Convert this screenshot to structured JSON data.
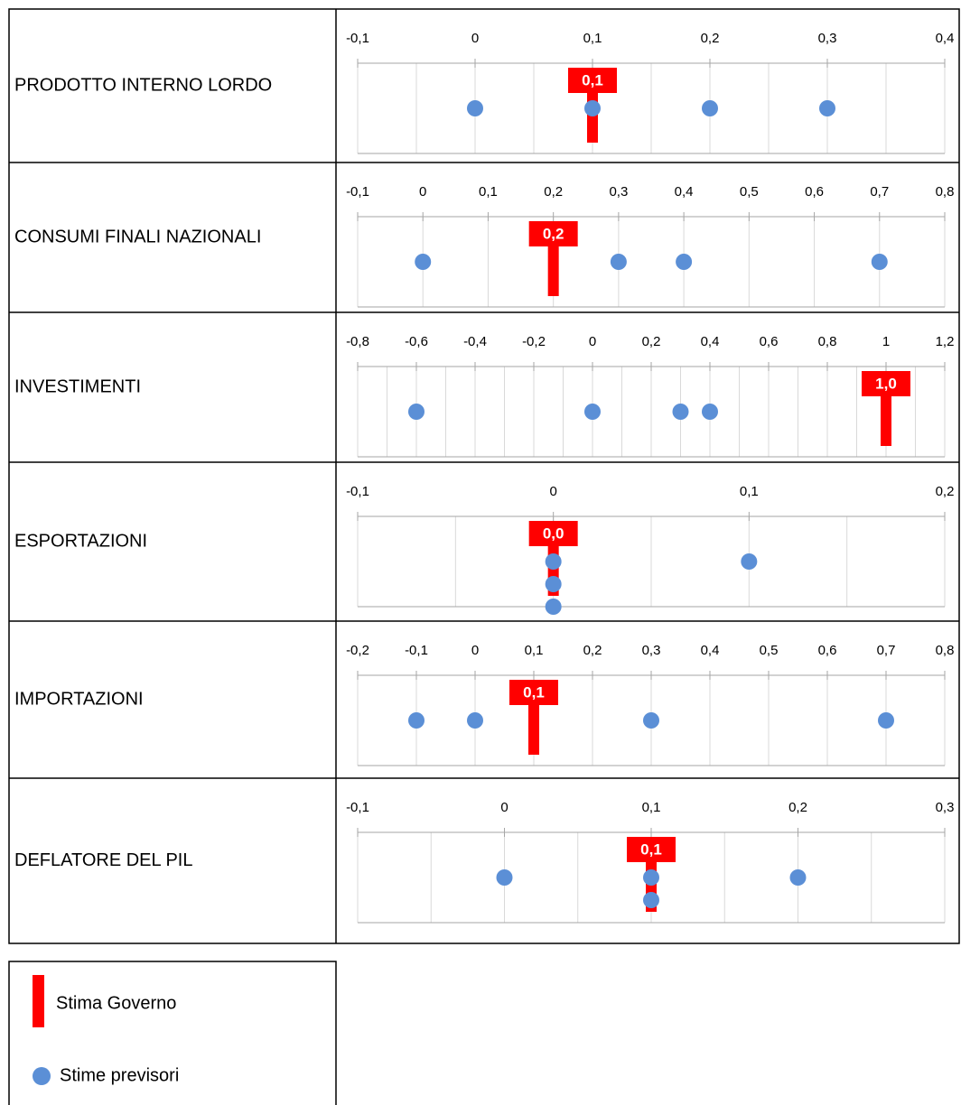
{
  "legend": [
    {
      "name": "Stima Governo",
      "color": "#ff0000"
    },
    {
      "name": "Stime previsori",
      "color": "#5b8fd6"
    }
  ],
  "chart_data": [
    {
      "type": "dot",
      "title": "PRODOTTO INTERNO LORDO",
      "xlim": [
        -0.1,
        0.4
      ],
      "xticks": [
        {
          "value": -0.1,
          "label": "-0,1"
        },
        0,
        {
          "value": 0.1,
          "label": "0,1"
        },
        {
          "value": 0.2,
          "label": "0,2"
        },
        {
          "value": 0.3,
          "label": "0,3"
        },
        {
          "value": 0.4,
          "label": "0,4"
        }
      ],
      "minor_grid": true,
      "series": [
        {
          "values": [
            0.1
          ],
          "value_labels": [
            "0,1"
          ]
        },
        {
          "values": [
            0,
            0.1,
            0.2,
            0.3
          ]
        }
      ]
    },
    {
      "type": "dot",
      "title": "CONSUMI FINALI NAZIONALI",
      "xlim": [
        -0.1,
        0.8
      ],
      "xticks": [
        {
          "value": -0.1,
          "label": "-0,1"
        },
        0,
        {
          "value": 0.1,
          "label": "0,1"
        },
        {
          "value": 0.2,
          "label": "0,2"
        },
        {
          "value": 0.3,
          "label": "0,3"
        },
        {
          "value": 0.4,
          "label": "0,4"
        },
        {
          "value": 0.5,
          "label": "0,5"
        },
        {
          "value": 0.6,
          "label": "0,6"
        },
        {
          "value": 0.7,
          "label": "0,7"
        },
        {
          "value": 0.8,
          "label": "0,8"
        }
      ],
      "minor_grid": false,
      "series": [
        {
          "values": [
            0.2
          ],
          "value_labels": [
            "0,2"
          ]
        },
        {
          "values": [
            0,
            0.3,
            0.4,
            0.7
          ]
        }
      ]
    },
    {
      "type": "dot",
      "title": "INVESTIMENTI",
      "xlim": [
        -0.8,
        1.2
      ],
      "xticks": [
        {
          "value": -0.8,
          "label": "-0,8"
        },
        {
          "value": -0.6,
          "label": "-0,6"
        },
        {
          "value": -0.4,
          "label": "-0,4"
        },
        {
          "value": -0.2,
          "label": "-0,2"
        },
        0,
        {
          "value": 0.2,
          "label": "0,2"
        },
        {
          "value": 0.4,
          "label": "0,4"
        },
        {
          "value": 0.6,
          "label": "0,6"
        },
        {
          "value": 0.8,
          "label": "0,8"
        },
        1,
        {
          "value": 1.2,
          "label": "1,2"
        }
      ],
      "minor_grid": true,
      "series": [
        {
          "values": [
            1.0
          ],
          "value_labels": [
            "1,0"
          ]
        },
        {
          "values": [
            -0.6,
            0,
            0.3,
            0.4
          ]
        }
      ]
    },
    {
      "type": "dot",
      "title": "ESPORTAZIONI",
      "xlim": [
        -0.1,
        0.2
      ],
      "xticks": [
        {
          "value": -0.1,
          "label": "-0,1"
        },
        0,
        {
          "value": 0.1,
          "label": "0,1"
        },
        {
          "value": 0.2,
          "label": "0,2"
        }
      ],
      "minor_grid": true,
      "series": [
        {
          "values": [
            0
          ],
          "value_labels": [
            "0,0"
          ]
        },
        {
          "values": [
            0,
            0.1,
            0,
            0
          ]
        }
      ]
    },
    {
      "type": "dot",
      "title": "IMPORTAZIONI",
      "xlim": [
        -0.2,
        0.8
      ],
      "xticks": [
        {
          "value": -0.2,
          "label": "-0,2"
        },
        {
          "value": -0.1,
          "label": "-0,1"
        },
        0,
        {
          "value": 0.1,
          "label": "0,1"
        },
        {
          "value": 0.2,
          "label": "0,2"
        },
        {
          "value": 0.3,
          "label": "0,3"
        },
        {
          "value": 0.4,
          "label": "0,4"
        },
        {
          "value": 0.5,
          "label": "0,5"
        },
        {
          "value": 0.6,
          "label": "0,6"
        },
        {
          "value": 0.7,
          "label": "0,7"
        },
        {
          "value": 0.8,
          "label": "0,8"
        }
      ],
      "minor_grid": false,
      "series": [
        {
          "values": [
            0.1
          ],
          "value_labels": [
            "0,1"
          ]
        },
        {
          "values": [
            -0.1,
            0,
            0.3,
            0.7
          ]
        }
      ]
    },
    {
      "type": "dot",
      "title": "DEFLATORE DEL PIL",
      "xlim": [
        -0.1,
        0.3
      ],
      "xticks": [
        {
          "value": -0.1,
          "label": "-0,1"
        },
        0,
        {
          "value": 0.1,
          "label": "0,1"
        },
        {
          "value": 0.2,
          "label": "0,2"
        },
        {
          "value": 0.3,
          "label": "0,3"
        }
      ],
      "minor_grid": true,
      "series": [
        {
          "values": [
            0.1
          ],
          "value_labels": [
            "0,1"
          ]
        },
        {
          "values": [
            0,
            0.1,
            0.2,
            0.1
          ]
        }
      ]
    }
  ]
}
